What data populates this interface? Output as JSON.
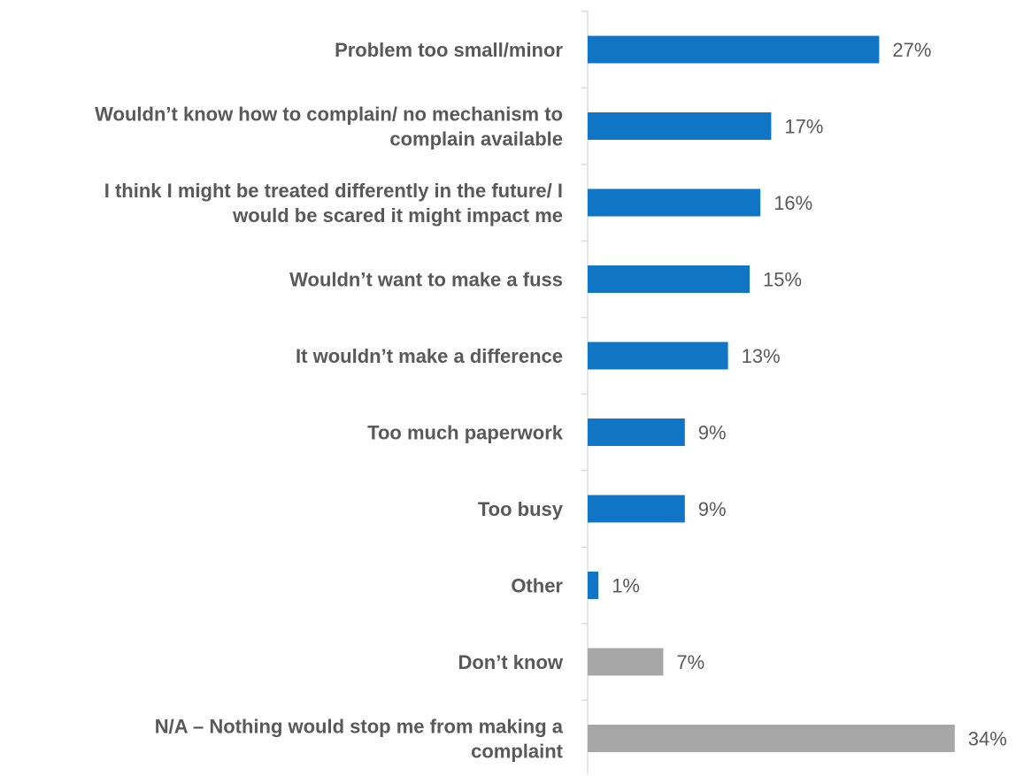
{
  "chart_data": {
    "type": "bar",
    "orientation": "horizontal",
    "title": "",
    "xlabel": "",
    "ylabel": "",
    "xlim": [
      0,
      34
    ],
    "grid": false,
    "legend": "none",
    "value_format": "percent",
    "categories": [
      "Problem too small/minor",
      "Wouldn’t know how to complain/ no mechanism to complain available",
      "I think I might be treated differently in the future/ I would be scared it might impact me",
      "Wouldn’t want to make a fuss",
      "It wouldn’t make a difference",
      "Too much paperwork",
      "Too busy",
      "Other",
      "Don’t know",
      "N/A – Nothing would stop me from making a complaint"
    ],
    "category_lines": [
      [
        "Problem too small/minor"
      ],
      [
        "Wouldn’t know how to complain/ no mechanism to",
        "complain available"
      ],
      [
        "I think I might be treated differently in the future/ I",
        "would be scared it might impact me"
      ],
      [
        "Wouldn’t want to make a fuss"
      ],
      [
        "It wouldn’t make a difference"
      ],
      [
        "Too much paperwork"
      ],
      [
        "Too busy"
      ],
      [
        "Other"
      ],
      [
        "Don’t know"
      ],
      [
        "N/A – Nothing would stop me from making a",
        "complaint"
      ]
    ],
    "values": [
      27,
      17,
      16,
      15,
      13,
      9,
      9,
      1,
      7,
      34
    ],
    "value_labels": [
      "27%",
      "17%",
      "16%",
      "15%",
      "13%",
      "9%",
      "9%",
      "1%",
      "7%",
      "34%"
    ],
    "bar_colors": [
      "#0F75C4",
      "#0F75C4",
      "#0F75C4",
      "#0F75C4",
      "#0F75C4",
      "#0F75C4",
      "#0F75C4",
      "#0F75C4",
      "#A6A6A7",
      "#A6A6A7"
    ],
    "axis_color": "#D9D9D9",
    "text_color": "#595959"
  }
}
